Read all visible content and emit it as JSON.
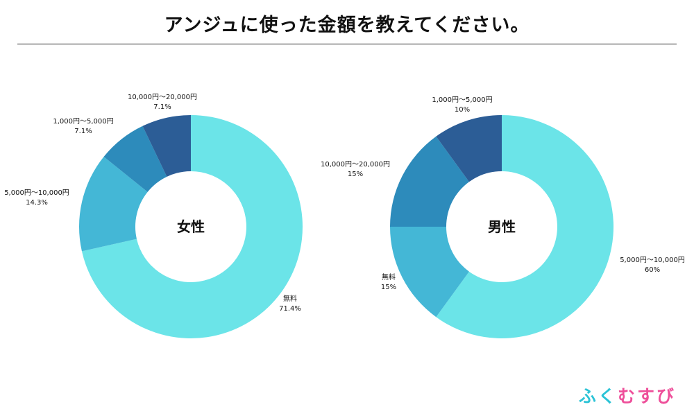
{
  "page_title": "アンジュに使った金額を教えてください。",
  "brand": {
    "chars": [
      {
        "ch": "ふ",
        "color": "#2cc3d6"
      },
      {
        "ch": "く",
        "color": "#2cc3d6"
      },
      {
        "ch": "む",
        "color": "#ee4f9a"
      },
      {
        "ch": "す",
        "color": "#ee4f9a"
      },
      {
        "ch": "び",
        "color": "#ee4f9a"
      }
    ]
  },
  "chart_data": [
    {
      "type": "pie",
      "center_label": "女性",
      "series": [
        {
          "name": "無料",
          "value": 71.4,
          "label": "71.4%",
          "color": "#6be4e8"
        },
        {
          "name": "5,000円〜10,000円",
          "value": 14.3,
          "label": "14.3%",
          "color": "#44b7d6"
        },
        {
          "name": "1,000円〜5,000円",
          "value": 7.1,
          "label": "7.1%",
          "color": "#2d8bbb"
        },
        {
          "name": "10,000円〜20,000円",
          "value": 7.1,
          "label": "7.1%",
          "color": "#2c5d96"
        }
      ]
    },
    {
      "type": "pie",
      "center_label": "男性",
      "series": [
        {
          "name": "5,000円〜10,000円",
          "value": 60,
          "label": "60%",
          "color": "#6be4e8"
        },
        {
          "name": "無料",
          "value": 15,
          "label": "15%",
          "color": "#44b7d6"
        },
        {
          "name": "10,000円〜20,000円",
          "value": 15,
          "label": "15%",
          "color": "#2d8bbb"
        },
        {
          "name": "1,000円〜5,000円",
          "value": 10,
          "label": "10%",
          "color": "#2c5d96"
        }
      ]
    }
  ]
}
